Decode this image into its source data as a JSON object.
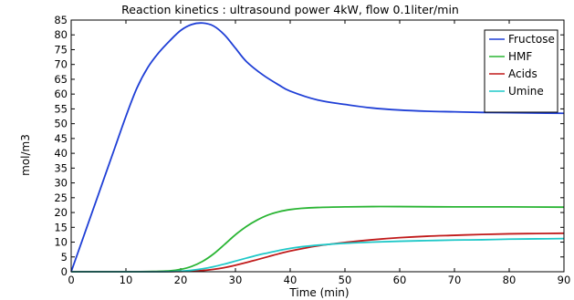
{
  "chart_data": {
    "type": "line",
    "title": "Reaction kinetics : ultrasound power 4kW, flow 0.1liter/min",
    "xlabel": "Time (min)",
    "ylabel": "mol/m3",
    "xlim": [
      0,
      90
    ],
    "ylim": [
      0,
      85
    ],
    "xticks": [
      0,
      10,
      20,
      30,
      40,
      50,
      60,
      70,
      80,
      90
    ],
    "yticks": [
      0,
      5,
      10,
      15,
      20,
      25,
      30,
      35,
      40,
      45,
      50,
      55,
      60,
      65,
      70,
      75,
      80,
      85
    ],
    "grid": false,
    "legend_position": "top-right",
    "series": [
      {
        "name": "Fructose",
        "color": "#1f3fd6",
        "x": [
          0,
          2,
          4,
          6,
          8,
          10,
          12,
          14,
          16,
          18,
          20,
          22,
          24,
          26,
          28,
          30,
          32,
          35,
          38,
          40,
          45,
          50,
          55,
          60,
          65,
          70,
          75,
          80,
          85,
          90
        ],
        "y": [
          0,
          10.5,
          21,
          31.5,
          42,
          52.5,
          62,
          69,
          74,
          78,
          81.5,
          83.5,
          84,
          83,
          80,
          75.5,
          71,
          66.5,
          63,
          61,
          58,
          56.5,
          55.3,
          54.6,
          54.2,
          54,
          53.8,
          53.7,
          53.6,
          53.5
        ]
      },
      {
        "name": "HMF",
        "color": "#2ab534",
        "x": [
          0,
          10,
          15,
          18,
          20,
          22,
          24,
          26,
          28,
          30,
          32,
          34,
          36,
          38,
          40,
          42,
          45,
          50,
          55,
          60,
          70,
          80,
          90
        ],
        "y": [
          0,
          0,
          0.1,
          0.3,
          0.8,
          1.8,
          3.5,
          6,
          9.2,
          12.5,
          15.3,
          17.5,
          19.2,
          20.3,
          21,
          21.4,
          21.7,
          21.9,
          22,
          22,
          21.9,
          21.9,
          21.8
        ]
      },
      {
        "name": "Acids",
        "color": "#c01a1a",
        "x": [
          0,
          15,
          20,
          22,
          24,
          26,
          28,
          30,
          32,
          34,
          36,
          38,
          40,
          43,
          46,
          50,
          55,
          60,
          65,
          70,
          75,
          80,
          85,
          90
        ],
        "y": [
          0,
          0,
          0.1,
          0.2,
          0.4,
          0.8,
          1.4,
          2.2,
          3.1,
          4.1,
          5.1,
          6.1,
          7,
          8.1,
          9,
          9.9,
          10.8,
          11.5,
          12,
          12.3,
          12.6,
          12.8,
          12.9,
          13
        ]
      },
      {
        "name": "Umine",
        "color": "#1fc8c8",
        "x": [
          0,
          15,
          20,
          22,
          24,
          26,
          28,
          30,
          32,
          34,
          36,
          38,
          40,
          43,
          46,
          50,
          55,
          60,
          65,
          70,
          75,
          80,
          85,
          90
        ],
        "y": [
          0,
          0,
          0.2,
          0.5,
          1,
          1.7,
          2.6,
          3.6,
          4.6,
          5.6,
          6.4,
          7.2,
          7.9,
          8.6,
          9.1,
          9.6,
          10,
          10.3,
          10.5,
          10.7,
          10.8,
          11,
          11.1,
          11.2
        ]
      }
    ]
  }
}
